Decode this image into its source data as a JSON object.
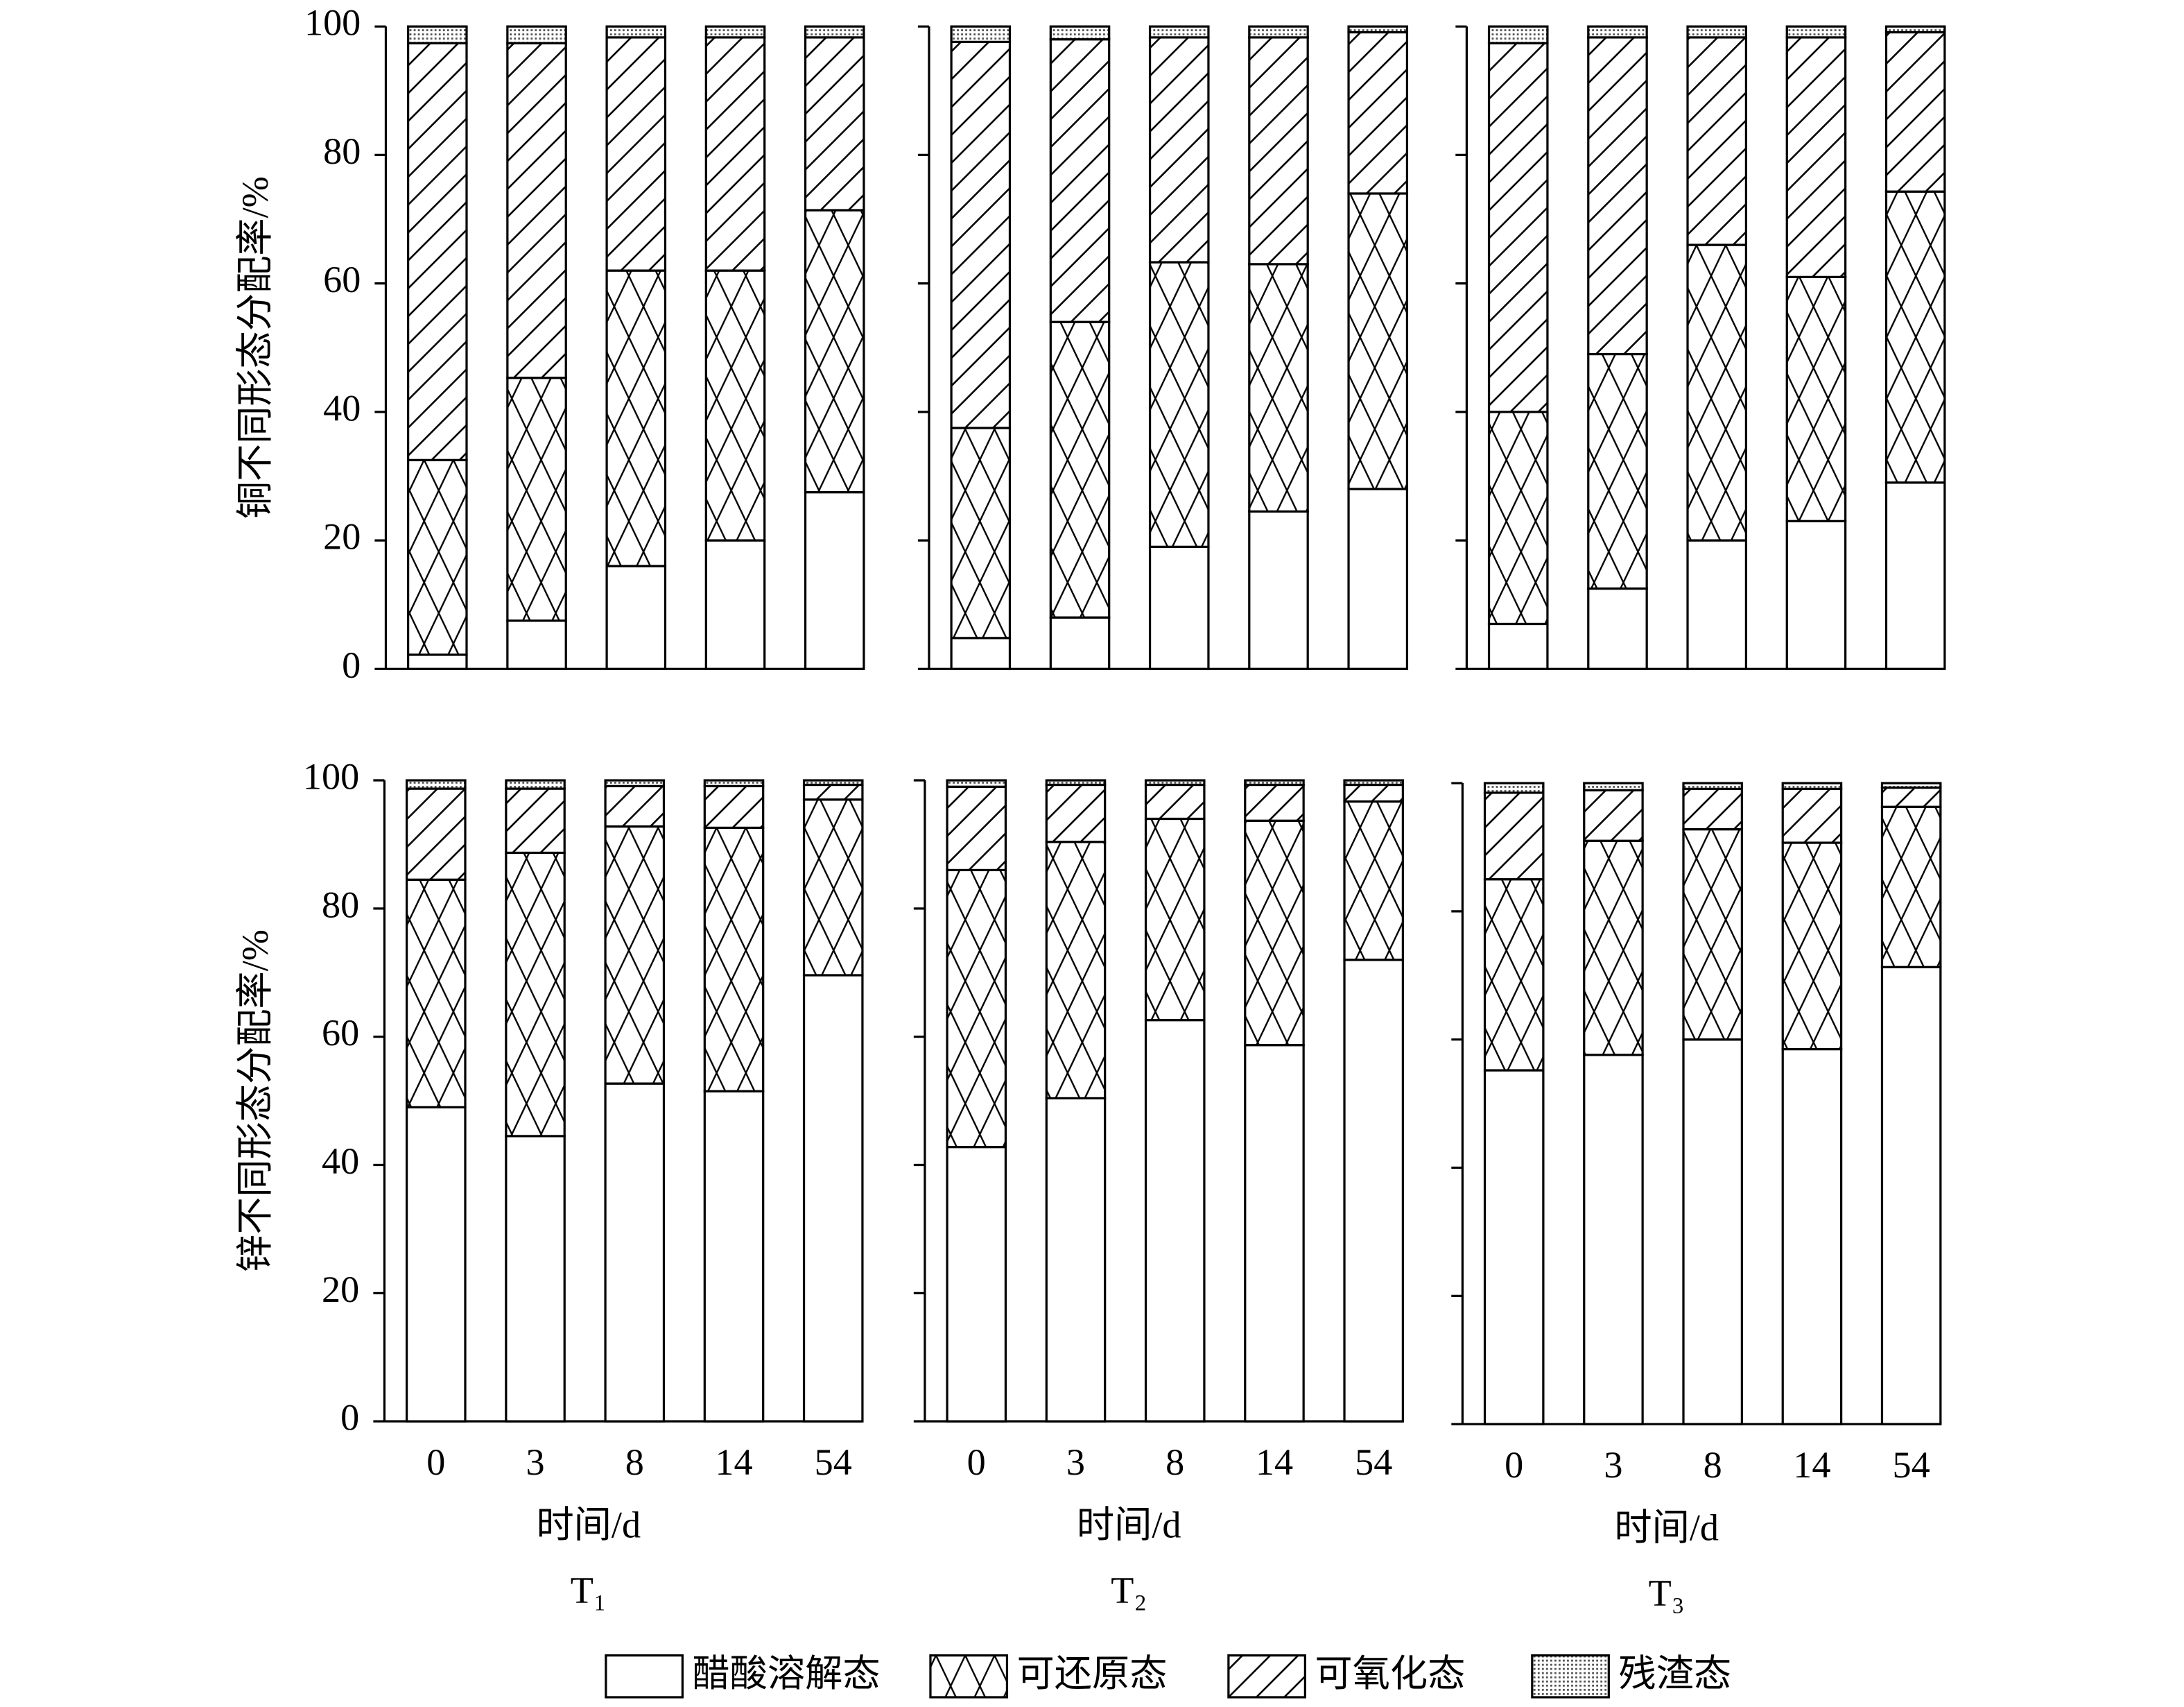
{
  "chart_data": [
    {
      "type": "bar",
      "stacked": true,
      "ylabel": "铜不同形态分配率/%",
      "ytick_labels": true,
      "categories": [
        null,
        null,
        null,
        null,
        null
      ],
      "ylim": [
        0,
        100
      ],
      "yticks": [
        0,
        20,
        40,
        60,
        80,
        100
      ],
      "series": [
        {
          "name": "醋酸溶解态",
          "pattern": "none",
          "color": "#000000",
          "values": [
            2.2,
            7.5,
            16,
            20,
            27.5
          ]
        },
        {
          "name": "可还原态",
          "pattern": "crosshatch",
          "color": "#000000",
          "values": [
            30.3,
            37.8,
            46,
            42,
            43.9
          ]
        },
        {
          "name": "可氧化态",
          "pattern": "diagonal",
          "color": "#000000",
          "values": [
            64.9,
            52.1,
            36.3,
            36.3,
            26.9
          ]
        },
        {
          "name": "残渣态",
          "pattern": "dots",
          "color": "#000000",
          "values": [
            2.6,
            2.6,
            1.7,
            1.7,
            1.7
          ]
        }
      ]
    },
    {
      "type": "bar",
      "stacked": true,
      "ytick_labels": false,
      "categories": [
        null,
        null,
        null,
        null,
        null
      ],
      "ylim": [
        0,
        100
      ],
      "yticks": [
        0,
        20,
        40,
        60,
        80,
        100
      ],
      "series": [
        {
          "pattern": "none",
          "color": "#000000",
          "values": [
            4.8,
            8,
            19,
            24.5,
            28
          ]
        },
        {
          "pattern": "crosshatch",
          "color": "#000000",
          "values": [
            32.7,
            46,
            44.3,
            38.5,
            46
          ]
        },
        {
          "pattern": "diagonal",
          "color": "#000000",
          "values": [
            60.1,
            44,
            35,
            35.3,
            25.1
          ]
        },
        {
          "pattern": "dots",
          "color": "#000000",
          "values": [
            2.4,
            2,
            1.7,
            1.7,
            0.9
          ]
        }
      ]
    },
    {
      "type": "bar",
      "stacked": true,
      "ytick_labels": false,
      "categories": [
        null,
        null,
        null,
        null,
        null
      ],
      "ylim": [
        0,
        100
      ],
      "yticks": [
        0,
        20,
        40,
        60,
        80,
        100
      ],
      "series": [
        {
          "pattern": "none",
          "color": "#000000",
          "values": [
            7,
            12.5,
            20,
            23,
            29
          ]
        },
        {
          "pattern": "crosshatch",
          "color": "#000000",
          "values": [
            33,
            36.5,
            46,
            38,
            45.3
          ]
        },
        {
          "pattern": "diagonal",
          "color": "#000000",
          "values": [
            57.4,
            49.3,
            32.3,
            37.3,
            24.8
          ]
        },
        {
          "pattern": "dots",
          "color": "#000000",
          "values": [
            2.6,
            1.7,
            1.7,
            1.7,
            0.9
          ]
        }
      ]
    },
    {
      "type": "bar",
      "stacked": true,
      "ylabel": "锌不同形态分配率/%",
      "ytick_labels": true,
      "xlabel": "时间/d",
      "panel_label": "T₁",
      "categories": [
        "0",
        "3",
        "8",
        "14",
        "54"
      ],
      "ylim": [
        0,
        100
      ],
      "yticks": [
        0,
        20,
        40,
        60,
        80,
        100
      ],
      "series": [
        {
          "pattern": "none",
          "color": "#000000",
          "values": [
            49,
            44.5,
            52.7,
            51.5,
            69.6
          ]
        },
        {
          "pattern": "crosshatch",
          "color": "#000000",
          "values": [
            35.5,
            44.2,
            40.1,
            41.1,
            27.4
          ]
        },
        {
          "pattern": "diagonal",
          "color": "#000000",
          "values": [
            14.2,
            10,
            6.3,
            6.5,
            2.3
          ]
        },
        {
          "pattern": "dots",
          "color": "#000000",
          "values": [
            1.3,
            1.3,
            0.9,
            0.9,
            0.7
          ]
        }
      ]
    },
    {
      "type": "bar",
      "stacked": true,
      "ytick_labels": false,
      "xlabel": "时间/d",
      "panel_label": "T₂",
      "categories": [
        "0",
        "3",
        "8",
        "14",
        "54"
      ],
      "ylim": [
        0,
        100
      ],
      "yticks": [
        0,
        20,
        40,
        60,
        80,
        100
      ],
      "series": [
        {
          "pattern": "none",
          "color": "#000000",
          "values": [
            42.8,
            50.4,
            62.6,
            58.7,
            72
          ]
        },
        {
          "pattern": "crosshatch",
          "color": "#000000",
          "values": [
            43.2,
            40,
            31.4,
            35,
            24.7
          ]
        },
        {
          "pattern": "diagonal",
          "color": "#000000",
          "values": [
            13,
            8.9,
            5.3,
            5.6,
            2.6
          ]
        },
        {
          "pattern": "dots",
          "color": "#000000",
          "values": [
            1,
            0.7,
            0.7,
            0.7,
            0.7
          ]
        }
      ]
    },
    {
      "type": "bar",
      "stacked": true,
      "ytick_labels": false,
      "xlabel": "时间/d",
      "panel_label": "T₃",
      "categories": [
        "0",
        "3",
        "8",
        "14",
        "54"
      ],
      "ylim": [
        0,
        100
      ],
      "yticks": [
        0,
        20,
        40,
        60,
        80,
        100
      ],
      "series": [
        {
          "pattern": "none",
          "color": "#000000",
          "values": [
            55.2,
            57.6,
            60,
            58.5,
            71.3
          ]
        },
        {
          "pattern": "crosshatch",
          "color": "#000000",
          "values": [
            29.8,
            33.4,
            32.8,
            32.2,
            25
          ]
        },
        {
          "pattern": "diagonal",
          "color": "#000000",
          "values": [
            13.5,
            7.9,
            6.3,
            8.4,
            3
          ]
        },
        {
          "pattern": "dots",
          "color": "#000000",
          "values": [
            1.5,
            1.1,
            0.9,
            0.9,
            0.7
          ]
        }
      ]
    }
  ]
}
